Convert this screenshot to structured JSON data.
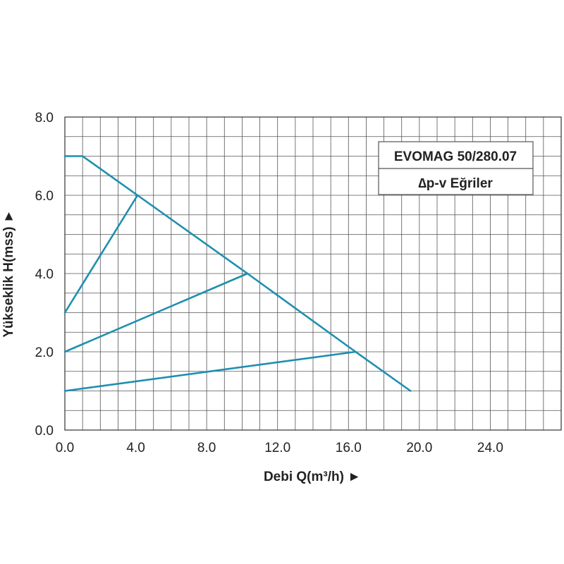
{
  "chart_data": {
    "type": "line",
    "xlabel": "Debi Q(m³/h) ►",
    "ylabel": "Yükseklik H(mss) ►",
    "xlim": [
      0,
      28
    ],
    "ylim": [
      0,
      8
    ],
    "x_ticks": [
      "0.0",
      "4.0",
      "8.0",
      "12.0",
      "16.0",
      "20.0",
      "24.0"
    ],
    "x_tick_values": [
      0,
      4,
      8,
      12,
      16,
      20,
      24
    ],
    "y_ticks": [
      "0.0",
      "2.0",
      "4.0",
      "6.0",
      "8.0"
    ],
    "y_tick_values": [
      0,
      2,
      4,
      6,
      8
    ],
    "grid": true,
    "legend": {
      "placement": "top-right",
      "line1": "EVOMAG 50/280.07",
      "line2": "∆p-v Eğriler"
    },
    "line_color": "#1e8fb0",
    "series": [
      {
        "x": [
          0,
          1,
          4.1,
          10.3,
          16.4,
          19.5
        ],
        "y": [
          7,
          7,
          6,
          4,
          2,
          1
        ]
      },
      {
        "x": [
          0,
          4.1
        ],
        "y": [
          3,
          6
        ]
      },
      {
        "x": [
          0,
          10.3
        ],
        "y": [
          2,
          4
        ]
      },
      {
        "x": [
          0,
          16.4
        ],
        "y": [
          1,
          2
        ]
      }
    ]
  }
}
